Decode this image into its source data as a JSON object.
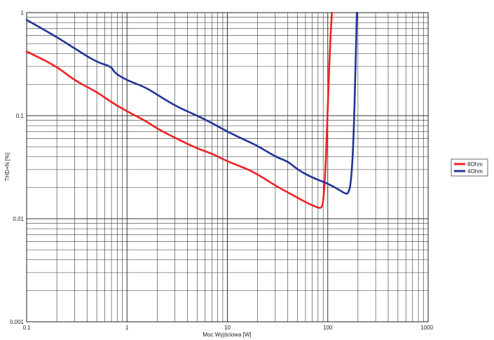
{
  "chart_data": {
    "type": "line",
    "title": "",
    "xlabel": "Moc Wyjściowa [W]",
    "ylabel": "THD+N [%]",
    "xscale": "log",
    "yscale": "log",
    "xlim": [
      0.1,
      1000
    ],
    "ylim": [
      0.001,
      1
    ],
    "x_ticks": [
      "0.1",
      "1",
      "10",
      "100",
      "1000"
    ],
    "y_ticks": [
      "1",
      "0.1",
      "0.01",
      "0.001"
    ],
    "grid": true,
    "legend_position": "right",
    "series": [
      {
        "name": "8Ohm",
        "color": "#ee2222",
        "x": [
          0.1,
          0.2,
          0.3,
          0.5,
          0.7,
          1.0,
          1.5,
          2,
          3,
          5,
          7,
          10,
          15,
          20,
          30,
          40,
          50,
          60,
          70,
          80,
          86,
          90,
          95,
          100,
          105,
          110
        ],
        "y": [
          0.42,
          0.3,
          0.22,
          0.17,
          0.135,
          0.11,
          0.09,
          0.075,
          0.061,
          0.048,
          0.043,
          0.036,
          0.031,
          0.027,
          0.021,
          0.018,
          0.016,
          0.0145,
          0.0135,
          0.0128,
          0.0127,
          0.014,
          0.03,
          0.12,
          0.45,
          1.0
        ]
      },
      {
        "name": "4Ohm",
        "color": "#223399",
        "x": [
          0.1,
          0.2,
          0.3,
          0.5,
          0.7,
          0.75,
          1.0,
          1.5,
          2,
          3,
          5,
          7,
          10,
          15,
          20,
          30,
          40,
          50,
          70,
          100,
          130,
          150,
          160,
          170,
          180,
          190,
          195
        ],
        "y": [
          0.85,
          0.58,
          0.45,
          0.33,
          0.3,
          0.26,
          0.22,
          0.19,
          0.16,
          0.125,
          0.1,
          0.085,
          0.07,
          0.058,
          0.051,
          0.04,
          0.036,
          0.03,
          0.025,
          0.022,
          0.019,
          0.0175,
          0.0175,
          0.022,
          0.05,
          0.35,
          1.0
        ]
      }
    ]
  }
}
